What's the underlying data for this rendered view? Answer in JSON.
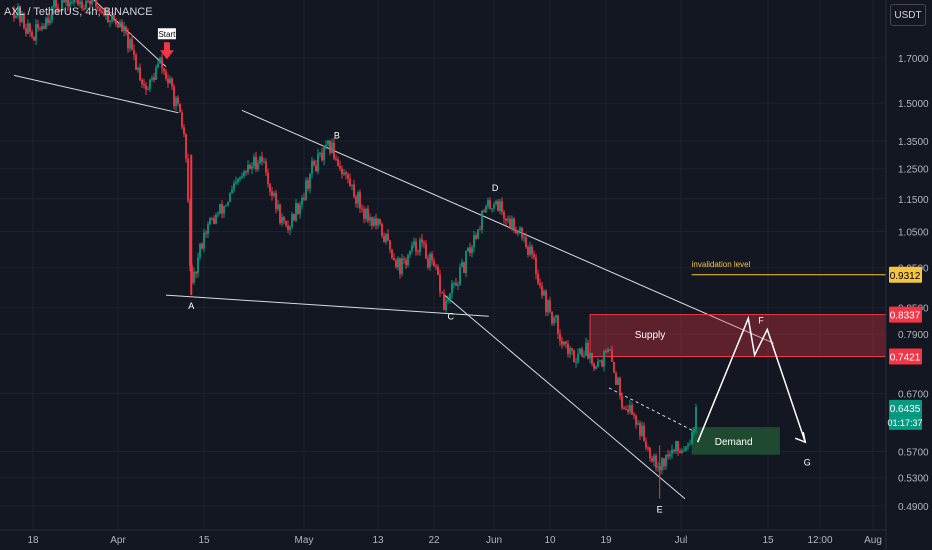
{
  "header": {
    "title": "AXL / TetherUS, 4h, BINANCE",
    "currency_button": "USDT"
  },
  "chart_data": {
    "type": "candlestick",
    "symbol": "AXL / TetherUS",
    "interval": "4h",
    "exchange": "BINANCE",
    "ylim": [
      0.47,
      2.05
    ],
    "scale": "log",
    "grid": true,
    "y_ticks": [
      "1.7000",
      "1.5000",
      "1.3500",
      "1.2500",
      "1.1500",
      "1.0500",
      "0.9500",
      "0.8500",
      "0.7900",
      "0.6700",
      "0.5700",
      "0.5300",
      "0.4900"
    ],
    "x_ticks": [
      "18",
      "Apr",
      "15",
      "May",
      "13",
      "22",
      "Jun",
      "10",
      "19",
      "Jul",
      "15",
      "12:00",
      "Aug"
    ],
    "price_path": [
      {
        "t": "Mar 15",
        "p": 1.95
      },
      {
        "t": "Mar 18",
        "p": 1.8
      },
      {
        "t": "Mar 20",
        "p": 1.9
      },
      {
        "t": "Mar 22",
        "p": 1.98
      },
      {
        "t": "Mar 27",
        "p": 2.0
      },
      {
        "t": "Apr 1",
        "p": 1.85
      },
      {
        "t": "Apr 4",
        "p": 1.62
      },
      {
        "t": "Apr 5",
        "p": 1.55
      },
      {
        "t": "Apr 7",
        "p": 1.68
      },
      {
        "t": "Apr 9",
        "p": 1.55
      },
      {
        "t": "Apr 11",
        "p": 1.36
      },
      {
        "t": "Apr 12",
        "p": 0.88
      },
      {
        "t": "Apr 14",
        "p": 1.05
      },
      {
        "t": "Apr 17",
        "p": 1.12
      },
      {
        "t": "Apr 20",
        "p": 1.22
      },
      {
        "t": "Apr 23",
        "p": 1.3
      },
      {
        "t": "Apr 25",
        "p": 1.15
      },
      {
        "t": "Apr 27",
        "p": 1.05
      },
      {
        "t": "Apr 30",
        "p": 1.18
      },
      {
        "t": "May 1",
        "p": 1.25
      },
      {
        "t": "May 4",
        "p": 1.33
      },
      {
        "t": "May 6",
        "p": 1.24
      },
      {
        "t": "May 9",
        "p": 1.12
      },
      {
        "t": "May 12",
        "p": 1.05
      },
      {
        "t": "May 15",
        "p": 0.95
      },
      {
        "t": "May 18",
        "p": 1.02
      },
      {
        "t": "May 21",
        "p": 0.92
      },
      {
        "t": "May 22",
        "p": 0.85
      },
      {
        "t": "May 25",
        "p": 0.95
      },
      {
        "t": "May 28",
        "p": 1.1
      },
      {
        "t": "May 30",
        "p": 1.15
      },
      {
        "t": "Jun 1",
        "p": 1.08
      },
      {
        "t": "Jun 3",
        "p": 1.06
      },
      {
        "t": "Jun 5",
        "p": 0.97
      },
      {
        "t": "Jun 7",
        "p": 0.86
      },
      {
        "t": "Jun 9",
        "p": 0.8
      },
      {
        "t": "Jun 11",
        "p": 0.74
      },
      {
        "t": "Jun 13",
        "p": 0.76
      },
      {
        "t": "Jun 15",
        "p": 0.73
      },
      {
        "t": "Jun 17",
        "p": 0.75
      },
      {
        "t": "Jun 19",
        "p": 0.66
      },
      {
        "t": "Jun 21",
        "p": 0.63
      },
      {
        "t": "Jun 23",
        "p": 0.58
      },
      {
        "t": "Jun 25",
        "p": 0.55
      },
      {
        "t": "Jun 27",
        "p": 0.57
      },
      {
        "t": "Jun 29",
        "p": 0.58
      },
      {
        "t": "Jun 30",
        "p": 0.6
      },
      {
        "t": "Jul 1",
        "p": 0.6435
      }
    ],
    "extreme_low": {
      "t": "Jun 25",
      "p": 0.5
    },
    "annotations": {
      "start_label": "Start",
      "points": [
        {
          "label": "A",
          "t": "Apr 12",
          "p": 0.88
        },
        {
          "label": "B",
          "t": "May 5",
          "p": 1.33
        },
        {
          "label": "C",
          "t": "May 23",
          "p": 0.85
        },
        {
          "label": "D",
          "t": "May 30",
          "p": 1.15
        },
        {
          "label": "E",
          "t": "Jun 25",
          "p": 0.5
        },
        {
          "label": "F",
          "t": "Jul 11",
          "p": 0.8
        },
        {
          "label": "G",
          "t": "Jul 18",
          "p": 0.58
        }
      ],
      "supply_zone": {
        "label": "Supply",
        "top": 0.8337,
        "bottom": 0.7421
      },
      "demand_zone": {
        "label": "Demand",
        "top": 0.61,
        "bottom": 0.565
      },
      "invalidation": {
        "label": "invalidation level",
        "price": 0.9312
      }
    },
    "price_labels": [
      {
        "value": "0.9312",
        "color": "#f5c542"
      },
      {
        "value": "0.8337",
        "color": "#f23645"
      },
      {
        "value": "0.7421",
        "color": "#f23645"
      },
      {
        "value": "0.6435",
        "color": "#089981"
      }
    ],
    "countdown": "01:17:37",
    "last_price": 0.6435
  },
  "colors": {
    "up": "#089981",
    "down": "#f23645",
    "background": "#131722",
    "grid": "#1e2230",
    "text": "#b2b5be"
  }
}
